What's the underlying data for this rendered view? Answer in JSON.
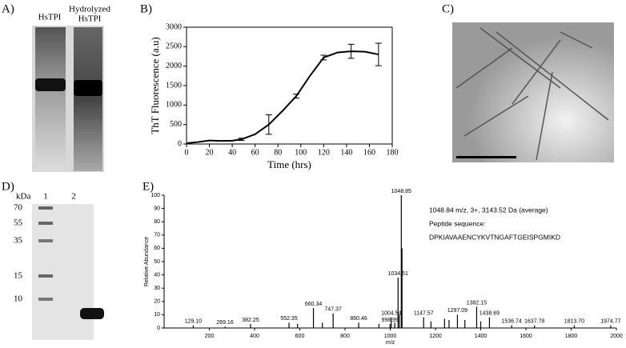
{
  "panel_labels": [
    "A)",
    "B)",
    "C)",
    "D)",
    "E)"
  ],
  "gel_a": {
    "lanes": [
      "HsTPI",
      "Hydrolyzed",
      "HsTPI"
    ]
  },
  "gel_d": {
    "unit": "kDa",
    "lanes": [
      "1",
      "2"
    ],
    "markers": [
      "70",
      "55",
      "35",
      "15",
      "10"
    ]
  },
  "chart_data": [
    {
      "type": "line",
      "xlabel": "Time (hrs)",
      "ylabel": "ThT Fluorescence (a.u)",
      "x": [
        0,
        10,
        20,
        30,
        40,
        48,
        60,
        72,
        84,
        96,
        108,
        120,
        132,
        144,
        156,
        168
      ],
      "series": [
        {
          "color": "#000000",
          "values": [
            20,
            50,
            90,
            80,
            85,
            120,
            250,
            500,
            850,
            1230,
            1750,
            2220,
            2350,
            2380,
            2370,
            2300
          ],
          "errors": [
            null,
            null,
            null,
            null,
            null,
            30,
            null,
            250,
            null,
            50,
            null,
            60,
            null,
            180,
            null,
            290
          ]
        }
      ],
      "xlim": [
        0,
        180
      ],
      "xticks": [
        0,
        20,
        40,
        60,
        80,
        100,
        120,
        140,
        160,
        180
      ],
      "ylim": [
        0,
        3000
      ],
      "yticks": [
        0,
        500,
        1000,
        1500,
        2000,
        2500,
        3000
      ]
    },
    {
      "type": "stem",
      "xlabel": "m/z",
      "ylabel": "Relative Abundance",
      "annotations": [
        "1048.84 m/z, 3+, 3143.52 Da (average)",
        "Peptide sequence:",
        "DPKIAVAAENCYKVTNGAFTGEISPGMIKD"
      ],
      "series": [
        {
          "color": "#000000",
          "x": [
            129.1,
            269.16,
            382.25,
            552.35,
            660.34,
            747.37,
            860.46,
            998.99,
            1004.54,
            1034.51,
            1048.85,
            1147.57,
            1297.09,
            1382.15,
            1438.69,
            1536.74,
            1637.78,
            1813.7,
            1974.77
          ],
          "x_labels": [
            "129.10",
            "269.16",
            "382.25",
            "552.35",
            "660.34",
            "747.37",
            "860.46",
            "998.99",
            "1004.54",
            "1034.51",
            "1048.85",
            "1147.57",
            "1297.09",
            "1382.15",
            "1438.69",
            "1536.74",
            "1637.78",
            "1813.70",
            "1974.77"
          ],
          "values": [
            2,
            1,
            3,
            4,
            15,
            11,
            4,
            3,
            8,
            38,
            100,
            8,
            10,
            16,
            8,
            2,
            2,
            2,
            2
          ]
        },
        {
          "color": "#000000",
          "x": [
            1052,
            1040,
            1020,
            1180,
            1240,
            1260,
            1330,
            1400,
            590,
            700,
            950
          ],
          "values": [
            60,
            10,
            4,
            5,
            7,
            6,
            6,
            5,
            3,
            4,
            3
          ]
        }
      ],
      "xlim": [
        0,
        2000
      ],
      "xticks": [
        200,
        400,
        600,
        800,
        1000,
        1200,
        1400,
        1600,
        1800,
        2000
      ],
      "ylim": [
        0,
        100
      ],
      "yticks": [
        0,
        10,
        20,
        30,
        40,
        50,
        60,
        70,
        80,
        90,
        100
      ]
    }
  ]
}
